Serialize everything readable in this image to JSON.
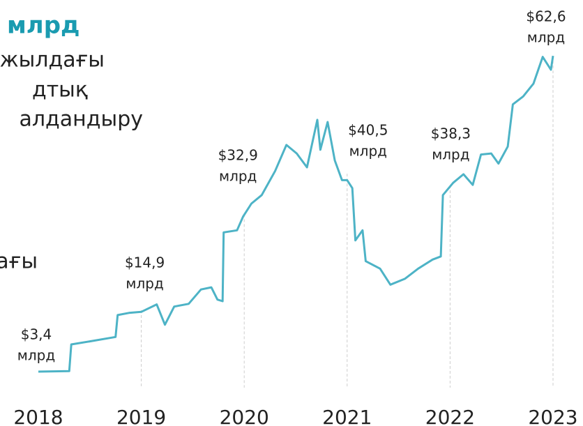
{
  "header": {
    "title": "млрд",
    "lines": [
      "жылдағы",
      "дтық",
      "алдандыру",
      "ағы"
    ]
  },
  "chart_data": {
    "type": "line",
    "color": "#4db3c6",
    "x": [
      2018.0,
      2018.3,
      2018.32,
      2018.51,
      2018.75,
      2018.77,
      2018.88,
      2019.0,
      2019.15,
      2019.23,
      2019.32,
      2019.46,
      2019.58,
      2019.68,
      2019.74,
      2019.79,
      2019.8,
      2019.93,
      2019.99,
      2020.07,
      2020.17,
      2020.3,
      2020.41,
      2020.51,
      2020.61,
      2020.71,
      2020.74,
      2020.81,
      2020.88,
      2020.95,
      2021.0,
      2021.05,
      2021.08,
      2021.15,
      2021.18,
      2021.32,
      2021.42,
      2021.56,
      2021.69,
      2021.83,
      2021.91,
      2021.93,
      2022.03,
      2022.13,
      2022.22,
      2022.3,
      2022.4,
      2022.47,
      2022.56,
      2022.61,
      2022.71,
      2022.81,
      2022.9,
      2022.98,
      2023.0
    ],
    "values": [
      3.4,
      3.5,
      8.5,
      9.1,
      9.9,
      14.0,
      14.4,
      14.6,
      16.0,
      12.2,
      15.6,
      16.1,
      18.8,
      19.2,
      16.9,
      16.6,
      29.5,
      29.9,
      32.5,
      34.9,
      36.5,
      41.0,
      45.9,
      44.3,
      41.7,
      50.6,
      45.0,
      50.2,
      43.0,
      39.3,
      39.3,
      37.8,
      28.0,
      29.9,
      24.1,
      22.7,
      19.7,
      20.8,
      22.7,
      24.4,
      25.0,
      36.5,
      38.8,
      40.4,
      38.4,
      44.1,
      44.3,
      42.4,
      45.6,
      53.5,
      55.0,
      57.4,
      62.4,
      60.0,
      62.6
    ],
    "xlim": [
      2018,
      2023
    ],
    "ylim": [
      0,
      70
    ],
    "xticks": [
      2018,
      2019,
      2020,
      2021,
      2022,
      2023
    ],
    "annotations": [
      {
        "x": 2018,
        "value": 3.4,
        "label": "$3,4",
        "unit": "млрд"
      },
      {
        "x": 2019,
        "value": 14.9,
        "label": "$14,9",
        "unit": "млрд"
      },
      {
        "x": 2020,
        "value": 32.9,
        "label": "$32,9",
        "unit": "млрд"
      },
      {
        "x": 2021,
        "value": 40.5,
        "label": "$40,5",
        "unit": "млрд"
      },
      {
        "x": 2022,
        "value": 38.3,
        "label": "$38,3",
        "unit": "млрд"
      },
      {
        "x": 2023,
        "value": 62.6,
        "label": "$62,6",
        "unit": "млрд"
      }
    ]
  }
}
